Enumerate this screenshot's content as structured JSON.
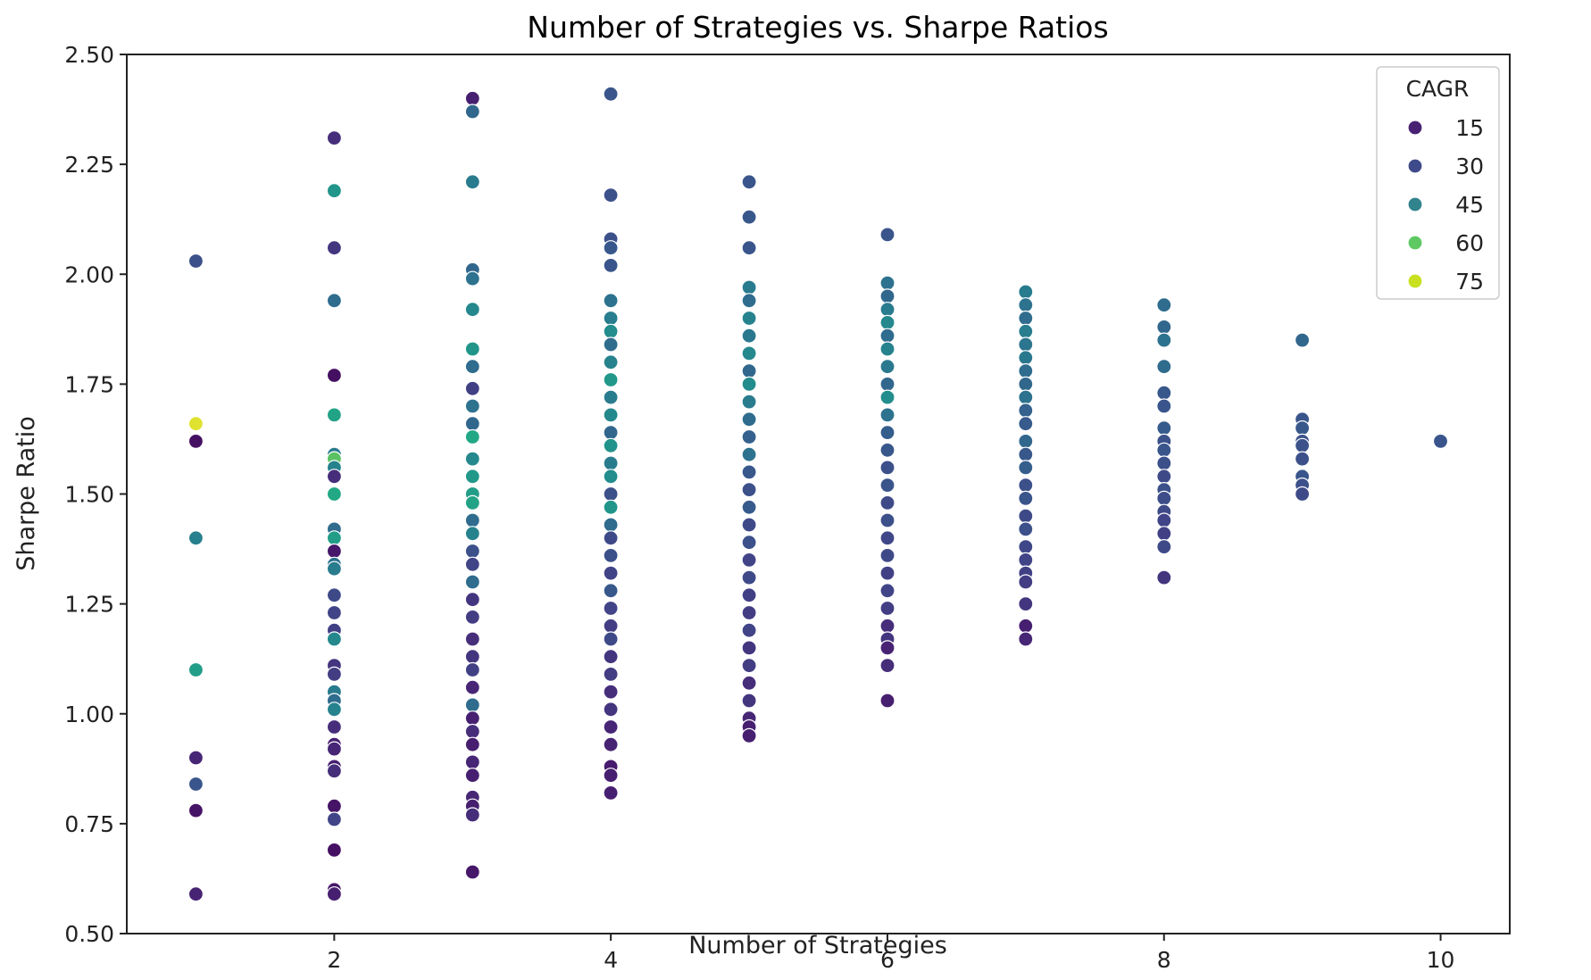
{
  "chart_data": {
    "type": "scatter",
    "title": "Number of Strategies vs. Sharpe Ratios",
    "xlabel": "Number of Strategies",
    "ylabel": "Sharpe Ratio",
    "xlim": [
      0.5,
      10.5
    ],
    "ylim": [
      0.5,
      2.5
    ],
    "xticks": [
      2,
      4,
      6,
      8,
      10
    ],
    "yticks": [
      0.5,
      0.75,
      1.0,
      1.25,
      1.5,
      1.75,
      2.0,
      2.25,
      2.5
    ],
    "ytick_labels": [
      "0.50",
      "0.75",
      "1.00",
      "1.25",
      "1.50",
      "1.75",
      "2.00",
      "2.25",
      "2.50"
    ],
    "grid": false,
    "hue": "CAGR",
    "colormap": "viridis",
    "legend": {
      "title": "CAGR",
      "position": "upper right",
      "entries": [
        {
          "label": "15",
          "color": "#482173"
        },
        {
          "label": "30",
          "color": "#3e4a89"
        },
        {
          "label": "45",
          "color": "#31838e"
        },
        {
          "label": "60",
          "color": "#5ec962"
        },
        {
          "label": "75",
          "color": "#c8e020"
        }
      ]
    },
    "points": [
      [
        1,
        2.03,
        30
      ],
      [
        1,
        1.66,
        78
      ],
      [
        1,
        1.62,
        12
      ],
      [
        1,
        1.4,
        47
      ],
      [
        1,
        1.1,
        58
      ],
      [
        1,
        0.9,
        18
      ],
      [
        1,
        0.84,
        32
      ],
      [
        1,
        0.78,
        13
      ],
      [
        1,
        0.59,
        17
      ],
      [
        2,
        2.31,
        20
      ],
      [
        2,
        2.19,
        55
      ],
      [
        2,
        2.06,
        22
      ],
      [
        2,
        1.94,
        40
      ],
      [
        2,
        1.77,
        12
      ],
      [
        2,
        1.68,
        60
      ],
      [
        2,
        1.59,
        45
      ],
      [
        2,
        1.58,
        68
      ],
      [
        2,
        1.56,
        48
      ],
      [
        2,
        1.54,
        20
      ],
      [
        2,
        1.5,
        62
      ],
      [
        2,
        1.42,
        40
      ],
      [
        2,
        1.4,
        58
      ],
      [
        2,
        1.37,
        14
      ],
      [
        2,
        1.34,
        42
      ],
      [
        2,
        1.33,
        45
      ],
      [
        2,
        1.27,
        28
      ],
      [
        2,
        1.23,
        26
      ],
      [
        2,
        1.19,
        25
      ],
      [
        2,
        1.17,
        50
      ],
      [
        2,
        1.11,
        22
      ],
      [
        2,
        1.09,
        24
      ],
      [
        2,
        1.05,
        45
      ],
      [
        2,
        1.03,
        40
      ],
      [
        2,
        1.01,
        48
      ],
      [
        2,
        0.97,
        20
      ],
      [
        2,
        0.93,
        16
      ],
      [
        2,
        0.92,
        18
      ],
      [
        2,
        0.88,
        16
      ],
      [
        2,
        0.87,
        20
      ],
      [
        2,
        0.79,
        13
      ],
      [
        2,
        0.76,
        26
      ],
      [
        2,
        0.69,
        12
      ],
      [
        2,
        0.6,
        14
      ],
      [
        2,
        0.59,
        16
      ],
      [
        3,
        2.4,
        16
      ],
      [
        3,
        2.37,
        38
      ],
      [
        3,
        2.21,
        45
      ],
      [
        3,
        2.01,
        38
      ],
      [
        3,
        1.99,
        42
      ],
      [
        3,
        1.92,
        50
      ],
      [
        3,
        1.83,
        55
      ],
      [
        3,
        1.79,
        40
      ],
      [
        3,
        1.74,
        25
      ],
      [
        3,
        1.7,
        42
      ],
      [
        3,
        1.66,
        38
      ],
      [
        3,
        1.63,
        62
      ],
      [
        3,
        1.58,
        50
      ],
      [
        3,
        1.54,
        56
      ],
      [
        3,
        1.5,
        58
      ],
      [
        3,
        1.48,
        60
      ],
      [
        3,
        1.44,
        40
      ],
      [
        3,
        1.41,
        48
      ],
      [
        3,
        1.37,
        30
      ],
      [
        3,
        1.34,
        26
      ],
      [
        3,
        1.3,
        40
      ],
      [
        3,
        1.26,
        22
      ],
      [
        3,
        1.22,
        24
      ],
      [
        3,
        1.17,
        20
      ],
      [
        3,
        1.13,
        22
      ],
      [
        3,
        1.1,
        25
      ],
      [
        3,
        1.06,
        18
      ],
      [
        3,
        1.02,
        40
      ],
      [
        3,
        0.99,
        16
      ],
      [
        3,
        0.96,
        20
      ],
      [
        3,
        0.93,
        16
      ],
      [
        3,
        0.89,
        18
      ],
      [
        3,
        0.86,
        16
      ],
      [
        3,
        0.81,
        18
      ],
      [
        3,
        0.79,
        16
      ],
      [
        3,
        0.77,
        20
      ],
      [
        3,
        0.64,
        14
      ],
      [
        4,
        2.41,
        32
      ],
      [
        4,
        2.18,
        30
      ],
      [
        4,
        2.08,
        30
      ],
      [
        4,
        2.06,
        33
      ],
      [
        4,
        2.02,
        32
      ],
      [
        4,
        1.94,
        42
      ],
      [
        4,
        1.9,
        46
      ],
      [
        4,
        1.87,
        52
      ],
      [
        4,
        1.84,
        40
      ],
      [
        4,
        1.8,
        48
      ],
      [
        4,
        1.76,
        56
      ],
      [
        4,
        1.72,
        45
      ],
      [
        4,
        1.68,
        50
      ],
      [
        4,
        1.64,
        38
      ],
      [
        4,
        1.61,
        54
      ],
      [
        4,
        1.57,
        45
      ],
      [
        4,
        1.54,
        52
      ],
      [
        4,
        1.5,
        30
      ],
      [
        4,
        1.47,
        55
      ],
      [
        4,
        1.43,
        40
      ],
      [
        4,
        1.4,
        28
      ],
      [
        4,
        1.36,
        30
      ],
      [
        4,
        1.32,
        26
      ],
      [
        4,
        1.28,
        33
      ],
      [
        4,
        1.24,
        26
      ],
      [
        4,
        1.2,
        24
      ],
      [
        4,
        1.17,
        28
      ],
      [
        4,
        1.13,
        22
      ],
      [
        4,
        1.09,
        24
      ],
      [
        4,
        1.05,
        20
      ],
      [
        4,
        1.01,
        22
      ],
      [
        4,
        0.97,
        18
      ],
      [
        4,
        0.93,
        17
      ],
      [
        4,
        0.88,
        15
      ],
      [
        4,
        0.86,
        16
      ],
      [
        4,
        0.82,
        16
      ],
      [
        5,
        2.21,
        32
      ],
      [
        5,
        2.13,
        33
      ],
      [
        5,
        2.06,
        32
      ],
      [
        5,
        1.97,
        45
      ],
      [
        5,
        1.94,
        40
      ],
      [
        5,
        1.9,
        48
      ],
      [
        5,
        1.86,
        44
      ],
      [
        5,
        1.82,
        50
      ],
      [
        5,
        1.78,
        38
      ],
      [
        5,
        1.75,
        52
      ],
      [
        5,
        1.71,
        45
      ],
      [
        5,
        1.67,
        40
      ],
      [
        5,
        1.63,
        36
      ],
      [
        5,
        1.59,
        42
      ],
      [
        5,
        1.55,
        33
      ],
      [
        5,
        1.51,
        30
      ],
      [
        5,
        1.47,
        34
      ],
      [
        5,
        1.43,
        28
      ],
      [
        5,
        1.39,
        30
      ],
      [
        5,
        1.35,
        26
      ],
      [
        5,
        1.31,
        28
      ],
      [
        5,
        1.27,
        25
      ],
      [
        5,
        1.23,
        24
      ],
      [
        5,
        1.19,
        26
      ],
      [
        5,
        1.15,
        22
      ],
      [
        5,
        1.11,
        24
      ],
      [
        5,
        1.07,
        20
      ],
      [
        5,
        1.03,
        22
      ],
      [
        5,
        0.99,
        18
      ],
      [
        5,
        0.97,
        16
      ],
      [
        5,
        0.95,
        16
      ],
      [
        6,
        2.09,
        32
      ],
      [
        6,
        1.98,
        42
      ],
      [
        6,
        1.95,
        38
      ],
      [
        6,
        1.92,
        45
      ],
      [
        6,
        1.89,
        50
      ],
      [
        6,
        1.86,
        40
      ],
      [
        6,
        1.83,
        48
      ],
      [
        6,
        1.79,
        44
      ],
      [
        6,
        1.75,
        38
      ],
      [
        6,
        1.72,
        52
      ],
      [
        6,
        1.68,
        42
      ],
      [
        6,
        1.64,
        35
      ],
      [
        6,
        1.6,
        33
      ],
      [
        6,
        1.56,
        30
      ],
      [
        6,
        1.52,
        32
      ],
      [
        6,
        1.48,
        28
      ],
      [
        6,
        1.44,
        30
      ],
      [
        6,
        1.4,
        27
      ],
      [
        6,
        1.36,
        28
      ],
      [
        6,
        1.32,
        25
      ],
      [
        6,
        1.28,
        26
      ],
      [
        6,
        1.24,
        24
      ],
      [
        6,
        1.2,
        20
      ],
      [
        6,
        1.17,
        22
      ],
      [
        6,
        1.15,
        17
      ],
      [
        6,
        1.11,
        20
      ],
      [
        6,
        1.03,
        16
      ],
      [
        7,
        1.96,
        45
      ],
      [
        7,
        1.93,
        42
      ],
      [
        7,
        1.9,
        40
      ],
      [
        7,
        1.87,
        46
      ],
      [
        7,
        1.84,
        43
      ],
      [
        7,
        1.81,
        44
      ],
      [
        7,
        1.78,
        40
      ],
      [
        7,
        1.75,
        38
      ],
      [
        7,
        1.72,
        42
      ],
      [
        7,
        1.69,
        36
      ],
      [
        7,
        1.66,
        34
      ],
      [
        7,
        1.62,
        38
      ],
      [
        7,
        1.59,
        33
      ],
      [
        7,
        1.56,
        35
      ],
      [
        7,
        1.52,
        30
      ],
      [
        7,
        1.49,
        32
      ],
      [
        7,
        1.45,
        28
      ],
      [
        7,
        1.42,
        30
      ],
      [
        7,
        1.38,
        27
      ],
      [
        7,
        1.35,
        26
      ],
      [
        7,
        1.32,
        25
      ],
      [
        7,
        1.3,
        24
      ],
      [
        7,
        1.25,
        22
      ],
      [
        7,
        1.2,
        16
      ],
      [
        7,
        1.17,
        18
      ],
      [
        8,
        1.93,
        40
      ],
      [
        8,
        1.88,
        38
      ],
      [
        8,
        1.85,
        42
      ],
      [
        8,
        1.79,
        40
      ],
      [
        8,
        1.73,
        33
      ],
      [
        8,
        1.7,
        32
      ],
      [
        8,
        1.65,
        34
      ],
      [
        8,
        1.62,
        30
      ],
      [
        8,
        1.6,
        32
      ],
      [
        8,
        1.57,
        30
      ],
      [
        8,
        1.54,
        28
      ],
      [
        8,
        1.51,
        30
      ],
      [
        8,
        1.49,
        29
      ],
      [
        8,
        1.46,
        28
      ],
      [
        8,
        1.44,
        26
      ],
      [
        8,
        1.41,
        25
      ],
      [
        8,
        1.38,
        28
      ],
      [
        8,
        1.31,
        22
      ],
      [
        9,
        1.85,
        38
      ],
      [
        9,
        1.67,
        32
      ],
      [
        9,
        1.65,
        33
      ],
      [
        9,
        1.62,
        30
      ],
      [
        9,
        1.61,
        31
      ],
      [
        9,
        1.58,
        30
      ],
      [
        9,
        1.54,
        32
      ],
      [
        9,
        1.52,
        30
      ],
      [
        9,
        1.5,
        28
      ],
      [
        10,
        1.62,
        32
      ]
    ]
  }
}
